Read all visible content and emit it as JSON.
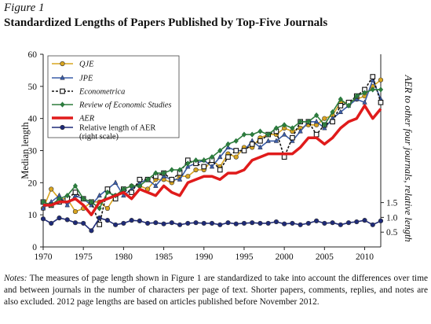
{
  "figure_label": "Figure 1",
  "figure_title": "Standardized Lengths of Papers Published by Top-Five Journals",
  "notes_lead": "Notes:",
  "notes_text": " The measures of page length shown in Figure 1 are standardized to take into account the differences over time and between journals in the number of characters per page of text. Shorter papers, comments, replies, and notes are also excluded. 2012 page lengths are based on articles published before November 2012.",
  "chart_data": {
    "type": "line",
    "xlim": [
      1970,
      2012
    ],
    "ylim": [
      0,
      60
    ],
    "y2lim": [
      0,
      2.5
    ],
    "xticks": [
      "1970",
      "1975",
      "1980",
      "1985",
      "1990",
      "1995",
      "2000",
      "2005",
      "2010"
    ],
    "yticks": [
      "0",
      "10",
      "20",
      "30",
      "40",
      "50",
      "60"
    ],
    "y2ticks": [
      "0.5",
      "1.0",
      "1.5"
    ],
    "ylabel": "Median length",
    "y2label": "AER to other four journals, relative length",
    "legend_position": "top-left",
    "x": [
      1970,
      1971,
      1972,
      1973,
      1974,
      1975,
      1976,
      1977,
      1978,
      1979,
      1980,
      1981,
      1982,
      1983,
      1984,
      1985,
      1986,
      1987,
      1988,
      1989,
      1990,
      1991,
      1992,
      1993,
      1994,
      1995,
      1996,
      1997,
      1998,
      1999,
      2000,
      2001,
      2002,
      2003,
      2004,
      2005,
      2006,
      2007,
      2008,
      2009,
      2010,
      2011,
      2012
    ],
    "series": [
      {
        "name": "QJE",
        "color": "#d9a520",
        "marker": "circle",
        "dashed": false,
        "axis": "left",
        "values": [
          12,
          18,
          15,
          15,
          11,
          12,
          14,
          14,
          12,
          16,
          18,
          19,
          19,
          18,
          21,
          21,
          20,
          22,
          22,
          24,
          24,
          27,
          25,
          29,
          28,
          31,
          31,
          34,
          35,
          35,
          37,
          36,
          37,
          38,
          38,
          40,
          41,
          45,
          45,
          46,
          47,
          50,
          52
        ]
      },
      {
        "name": "JPE",
        "color": "#3b5ea8",
        "marker": "triangle",
        "dashed": false,
        "axis": "left",
        "values": [
          12,
          14,
          16,
          13,
          16,
          15,
          13,
          16,
          18,
          20,
          16,
          18,
          20,
          21,
          19,
          22,
          21,
          21,
          25,
          26,
          27,
          25,
          28,
          31,
          30,
          30,
          33,
          31,
          33,
          33,
          35,
          33,
          36,
          39,
          39,
          37,
          40,
          42,
          44,
          46,
          45,
          52,
          46
        ]
      },
      {
        "name": "Econometrica",
        "color": "#111111",
        "marker": "square",
        "dashed": true,
        "axis": "left",
        "values": [
          14,
          13,
          14,
          15,
          17,
          15,
          14,
          7,
          18,
          15,
          18,
          17,
          21,
          21,
          22,
          23,
          21,
          23,
          27,
          26,
          25,
          27,
          24,
          28,
          30,
          30,
          32,
          33,
          35,
          36,
          28,
          34,
          39,
          39,
          35,
          38,
          39,
          44,
          45,
          47,
          49,
          53,
          45
        ]
      },
      {
        "name": "Review of Economic Studies",
        "color": "#2e7d3c",
        "marker": "diamond",
        "dashed": false,
        "axis": "left",
        "values": [
          14,
          13,
          15,
          16,
          19,
          15,
          14,
          12,
          17,
          16,
          18,
          19,
          19,
          21,
          23,
          23,
          24,
          24,
          26,
          27,
          27,
          28,
          30,
          32,
          33,
          35,
          35,
          36,
          35,
          37,
          38,
          37,
          39,
          39,
          41,
          38,
          42,
          46,
          44,
          47,
          48,
          49,
          49
        ]
      },
      {
        "name": "AER",
        "color": "#e01b1b",
        "marker": "none",
        "dashed": false,
        "width": 3.5,
        "axis": "left",
        "values": [
          13,
          13,
          14,
          14,
          15,
          13,
          10,
          14,
          15,
          16,
          17,
          15,
          18,
          17,
          16,
          19,
          17,
          16,
          20,
          21,
          22,
          22,
          21,
          23,
          23,
          24,
          27,
          28,
          29,
          29,
          29,
          29,
          31,
          34,
          34,
          32,
          34,
          37,
          39,
          40,
          44,
          40,
          43
        ]
      },
      {
        "name": "Relative length of AER",
        "color": "#1e2a78",
        "marker": "circle",
        "dashed": false,
        "axis": "right",
        "values": [
          0.95,
          0.8,
          0.98,
          0.92,
          0.82,
          0.8,
          0.55,
          0.98,
          0.9,
          0.75,
          0.8,
          0.9,
          0.88,
          0.8,
          0.82,
          0.78,
          0.82,
          0.75,
          0.8,
          0.82,
          0.8,
          0.8,
          0.75,
          0.82,
          0.78,
          0.8,
          0.82,
          0.8,
          0.8,
          0.85,
          0.78,
          0.8,
          0.75,
          0.8,
          0.88,
          0.8,
          0.82,
          0.75,
          0.82,
          0.85,
          0.9,
          0.75,
          0.88
        ]
      }
    ],
    "legend_entries": [
      "QJE",
      "JPE",
      "Econometrica",
      "Review of Economic Studies",
      "AER",
      "Relative length of AER",
      "(right scale)"
    ]
  }
}
